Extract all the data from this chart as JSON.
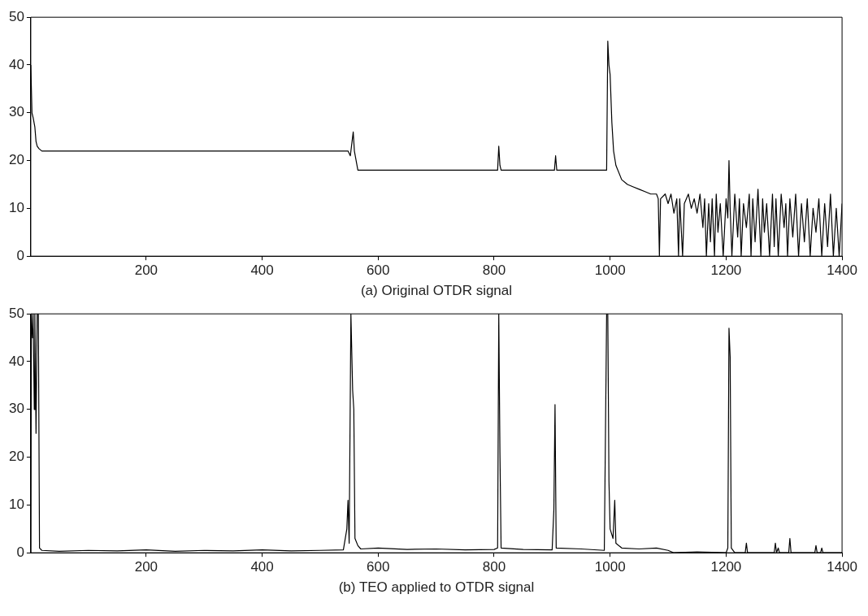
{
  "chart_data": [
    {
      "type": "line",
      "xlabel": "(a) Original OTDR signal",
      "color": "#000000",
      "grid": false,
      "legend": false,
      "marker": "none",
      "xlim": [
        1,
        1400
      ],
      "xticks": [
        200,
        400,
        600,
        800,
        1000,
        1200,
        1400
      ],
      "ylim": [
        0,
        50
      ],
      "yticks": [
        0,
        10,
        20,
        30,
        40,
        50
      ],
      "x": [
        1,
        3,
        5,
        8,
        10,
        12,
        15,
        20,
        100,
        200,
        300,
        400,
        500,
        548,
        552,
        555,
        557,
        559,
        562,
        565,
        600,
        700,
        806,
        808,
        810,
        812,
        904,
        906,
        908,
        994,
        996,
        998,
        1000,
        1003,
        1006,
        1010,
        1020,
        1030,
        1040,
        1050,
        1060,
        1070,
        1080,
        1083,
        1085,
        1087,
        1095,
        1100,
        1105,
        1110,
        1115,
        1118,
        1120,
        1125,
        1128,
        1135,
        1140,
        1145,
        1150,
        1155,
        1160,
        1163,
        1166,
        1170,
        1173,
        1176,
        1180,
        1183,
        1186,
        1190,
        1195,
        1200,
        1203,
        1205,
        1207,
        1210,
        1215,
        1220,
        1223,
        1226,
        1230,
        1235,
        1240,
        1243,
        1246,
        1250,
        1255,
        1260,
        1263,
        1266,
        1270,
        1275,
        1280,
        1283,
        1286,
        1290,
        1295,
        1300,
        1303,
        1306,
        1310,
        1315,
        1320,
        1325,
        1330,
        1335,
        1340,
        1345,
        1350,
        1355,
        1360,
        1365,
        1370,
        1375,
        1380,
        1385,
        1390,
        1395,
        1400
      ],
      "values": [
        40,
        30,
        29,
        27,
        24,
        23,
        22.5,
        22,
        22,
        22,
        22,
        22,
        22,
        22,
        21,
        24,
        26,
        22,
        20,
        18,
        18,
        18,
        18,
        23,
        19,
        18,
        18,
        21,
        18,
        18,
        45,
        40,
        38,
        28,
        22,
        19,
        16,
        15,
        14.5,
        14,
        13.5,
        13,
        13,
        12,
        0,
        12,
        13,
        11,
        13,
        9,
        12,
        0,
        12,
        0,
        11,
        13,
        10,
        12,
        9,
        13,
        6,
        12,
        0,
        11,
        3,
        12,
        0,
        13,
        5,
        11,
        0,
        12,
        8,
        20,
        10,
        0,
        13,
        4,
        12,
        0,
        11,
        6,
        13,
        0,
        12,
        3,
        14,
        0,
        12,
        5,
        11,
        0,
        13,
        2,
        12,
        0,
        13,
        6,
        11,
        0,
        12,
        4,
        13,
        0,
        11,
        3,
        12,
        0,
        10,
        5,
        12,
        0,
        11,
        2,
        13,
        0,
        10,
        0,
        11
      ]
    },
    {
      "type": "line",
      "xlabel": "(b) TEO applied to OTDR signal",
      "color": "#000000",
      "grid": false,
      "legend": false,
      "marker": "none",
      "xlim": [
        1,
        1400
      ],
      "xticks": [
        200,
        400,
        600,
        800,
        1000,
        1200,
        1400
      ],
      "ylim": [
        0,
        50
      ],
      "yticks": [
        0,
        10,
        20,
        30,
        40,
        50
      ],
      "x": [
        1,
        2,
        4,
        5,
        7,
        8,
        10,
        12,
        14,
        16,
        20,
        50,
        100,
        150,
        200,
        250,
        300,
        350,
        400,
        450,
        500,
        540,
        546,
        548,
        550,
        553,
        556,
        558,
        560,
        565,
        570,
        600,
        650,
        700,
        750,
        800,
        806,
        808,
        810,
        812,
        850,
        900,
        903,
        905,
        907,
        950,
        990,
        994,
        996,
        998,
        1000,
        1005,
        1008,
        1010,
        1020,
        1050,
        1080,
        1100,
        1110,
        1150,
        1200,
        1203,
        1205,
        1207,
        1209,
        1215,
        1233,
        1235,
        1237,
        1283,
        1285,
        1287,
        1290,
        1292,
        1308,
        1310,
        1312,
        1353,
        1355,
        1357,
        1363,
        1365,
        1367,
        1400
      ],
      "values": [
        0,
        50,
        45,
        50,
        30,
        50,
        25,
        50,
        50,
        1,
        0.5,
        0.3,
        0.5,
        0.4,
        0.6,
        0.3,
        0.5,
        0.4,
        0.6,
        0.4,
        0.5,
        0.6,
        5,
        11,
        2,
        50,
        34,
        30,
        3,
        1.5,
        0.8,
        1,
        0.7,
        0.8,
        0.6,
        0.7,
        1,
        50,
        21,
        1,
        0.7,
        0.6,
        9,
        31,
        1,
        0.8,
        0.5,
        50,
        50,
        15,
        5,
        3,
        11,
        2,
        1,
        0.8,
        1,
        0.5,
        0,
        0.2,
        0,
        1,
        47,
        41,
        1,
        0,
        0,
        2,
        0,
        0,
        2,
        0,
        1,
        0,
        0,
        3,
        0,
        0,
        1.5,
        0,
        0,
        1,
        0,
        0
      ]
    }
  ]
}
